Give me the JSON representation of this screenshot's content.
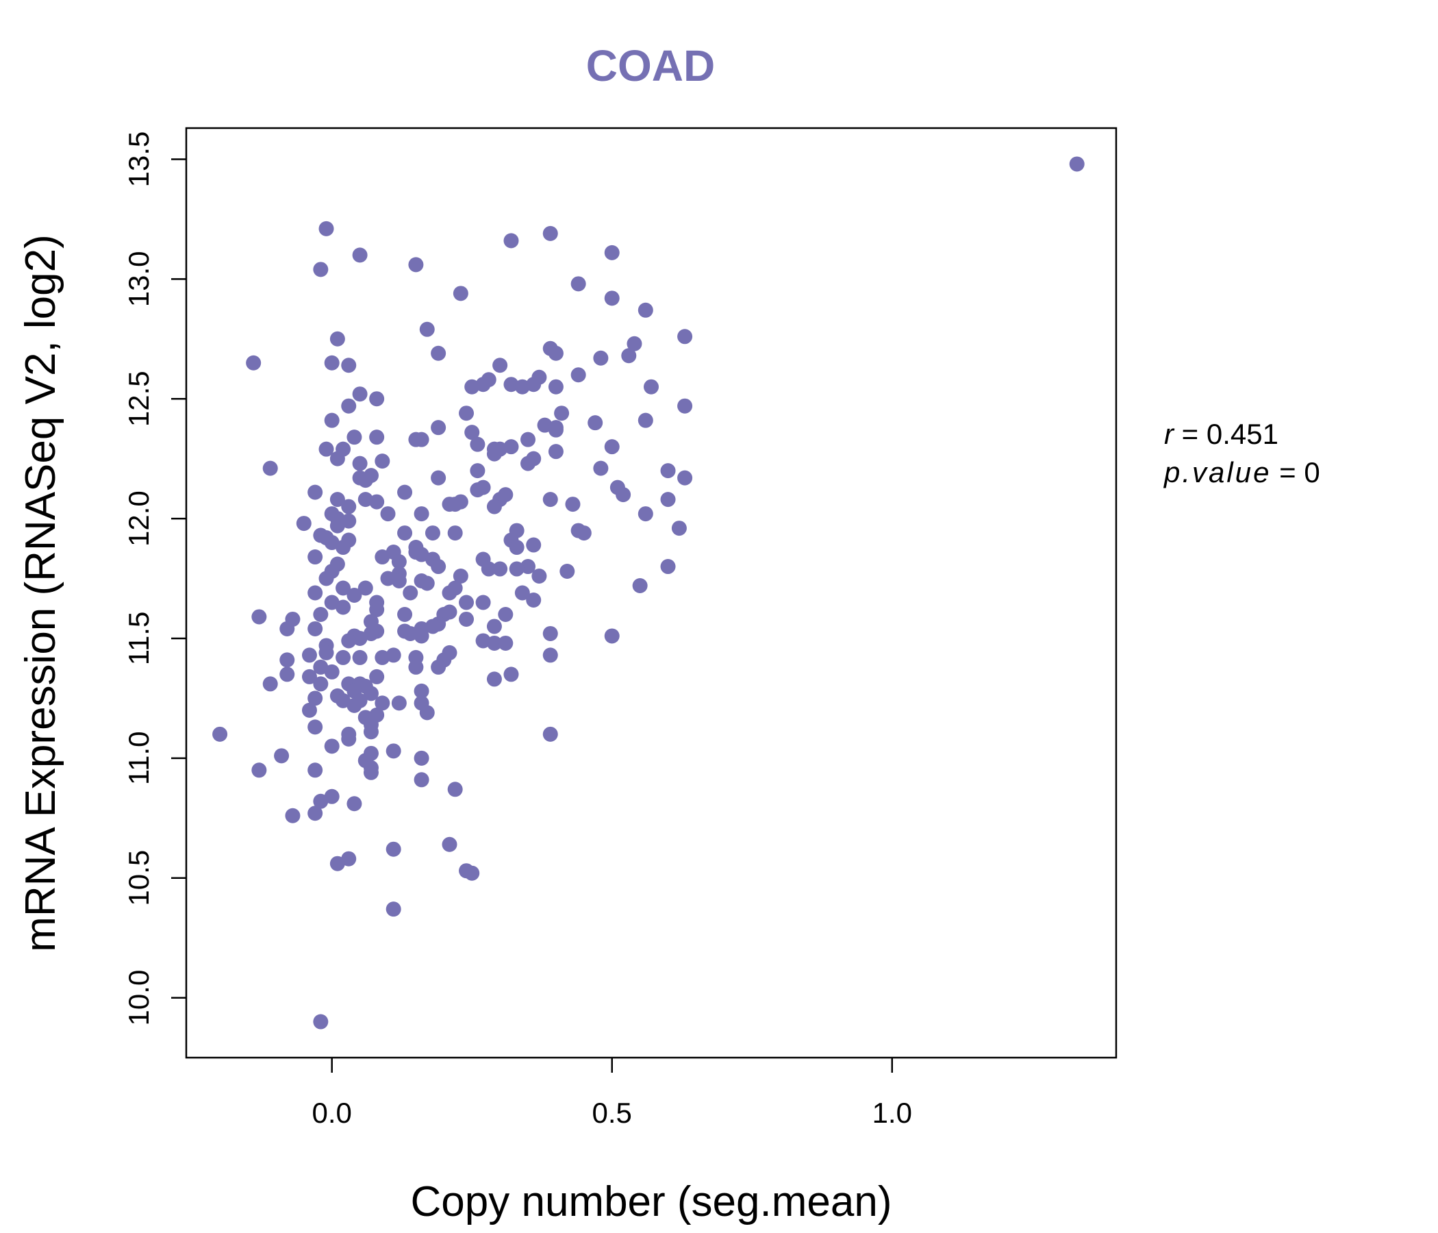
{
  "chart_data": {
    "type": "scatter",
    "title": "COAD",
    "xlabel": "Copy number (seg.mean)",
    "ylabel": "mRNA Expression (RNASeq V2, log2)",
    "xlim": [
      -0.26,
      1.4
    ],
    "ylim": [
      9.75,
      13.63
    ],
    "xticks": [
      0.0,
      0.5,
      1.0
    ],
    "xtick_labels": [
      "0.0",
      "0.5",
      "1.0"
    ],
    "yticks": [
      10.0,
      10.5,
      11.0,
      11.5,
      12.0,
      12.5,
      13.0,
      13.5
    ],
    "ytick_labels": [
      "10.0",
      "10.5",
      "11.0",
      "11.5",
      "12.0",
      "12.5",
      "13.0",
      "13.5"
    ],
    "grid": false,
    "annotation": {
      "r_label": "r",
      "r_value": "0.451",
      "p_label": "p.value",
      "p_value": "0"
    },
    "point_color": "#7570b3",
    "points": [
      [
        1.33,
        13.48
      ],
      [
        -0.01,
        13.21
      ],
      [
        0.39,
        13.19
      ],
      [
        0.32,
        13.16
      ],
      [
        0.5,
        13.11
      ],
      [
        0.05,
        13.1
      ],
      [
        0.15,
        13.06
      ],
      [
        -0.02,
        13.04
      ],
      [
        0.44,
        12.98
      ],
      [
        0.23,
        12.94
      ],
      [
        0.5,
        12.92
      ],
      [
        0.56,
        12.87
      ],
      [
        0.17,
        12.79
      ],
      [
        0.01,
        12.75
      ],
      [
        0.63,
        12.76
      ],
      [
        0.54,
        12.73
      ],
      [
        0.39,
        12.71
      ],
      [
        0.19,
        12.69
      ],
      [
        0.4,
        12.69
      ],
      [
        0.53,
        12.68
      ],
      [
        0.48,
        12.67
      ],
      [
        -0.14,
        12.65
      ],
      [
        0.0,
        12.65
      ],
      [
        0.03,
        12.64
      ],
      [
        0.3,
        12.64
      ],
      [
        0.44,
        12.6
      ],
      [
        0.37,
        12.59
      ],
      [
        0.28,
        12.58
      ],
      [
        0.32,
        12.56
      ],
      [
        0.25,
        12.55
      ],
      [
        0.34,
        12.55
      ],
      [
        0.36,
        12.56
      ],
      [
        0.27,
        12.56
      ],
      [
        0.4,
        12.55
      ],
      [
        0.57,
        12.55
      ],
      [
        0.05,
        12.52
      ],
      [
        0.08,
        12.5
      ],
      [
        0.03,
        12.47
      ],
      [
        0.63,
        12.47
      ],
      [
        0.41,
        12.44
      ],
      [
        0.24,
        12.44
      ],
      [
        0.0,
        12.41
      ],
      [
        0.56,
        12.41
      ],
      [
        0.47,
        12.4
      ],
      [
        0.38,
        12.39
      ],
      [
        0.19,
        12.38
      ],
      [
        0.4,
        12.38
      ],
      [
        0.4,
        12.37
      ],
      [
        0.25,
        12.36
      ],
      [
        0.08,
        12.34
      ],
      [
        0.04,
        12.34
      ],
      [
        0.16,
        12.33
      ],
      [
        0.15,
        12.33
      ],
      [
        0.35,
        12.33
      ],
      [
        0.26,
        12.31
      ],
      [
        0.32,
        12.3
      ],
      [
        0.5,
        12.3
      ],
      [
        0.29,
        12.29
      ],
      [
        -0.01,
        12.29
      ],
      [
        0.3,
        12.29
      ],
      [
        0.02,
        12.29
      ],
      [
        0.4,
        12.28
      ],
      [
        0.29,
        12.27
      ],
      [
        0.01,
        12.25
      ],
      [
        0.36,
        12.25
      ],
      [
        0.35,
        12.23
      ],
      [
        0.09,
        12.24
      ],
      [
        0.05,
        12.23
      ],
      [
        0.48,
        12.21
      ],
      [
        -0.11,
        12.21
      ],
      [
        0.26,
        12.2
      ],
      [
        0.6,
        12.2
      ],
      [
        0.07,
        12.18
      ],
      [
        0.05,
        12.17
      ],
      [
        0.19,
        12.17
      ],
      [
        0.63,
        12.17
      ],
      [
        0.06,
        12.16
      ],
      [
        0.51,
        12.13
      ],
      [
        0.27,
        12.13
      ],
      [
        0.26,
        12.12
      ],
      [
        -0.03,
        12.11
      ],
      [
        0.13,
        12.11
      ],
      [
        0.52,
        12.1
      ],
      [
        0.31,
        12.1
      ],
      [
        0.3,
        12.08
      ],
      [
        0.01,
        12.08
      ],
      [
        0.39,
        12.08
      ],
      [
        0.06,
        12.08
      ],
      [
        0.6,
        12.08
      ],
      [
        0.08,
        12.07
      ],
      [
        0.21,
        12.06
      ],
      [
        0.23,
        12.07
      ],
      [
        0.22,
        12.06
      ],
      [
        0.43,
        12.06
      ],
      [
        0.03,
        12.05
      ],
      [
        0.29,
        12.05
      ],
      [
        0.0,
        12.02
      ],
      [
        0.1,
        12.02
      ],
      [
        0.16,
        12.02
      ],
      [
        0.56,
        12.02
      ],
      [
        0.01,
        12.0
      ],
      [
        0.03,
        11.99
      ],
      [
        0.01,
        11.97
      ],
      [
        -0.05,
        11.98
      ],
      [
        0.62,
        11.96
      ],
      [
        0.33,
        11.95
      ],
      [
        0.44,
        11.95
      ],
      [
        0.45,
        11.94
      ],
      [
        0.13,
        11.94
      ],
      [
        0.22,
        11.94
      ],
      [
        0.18,
        11.94
      ],
      [
        -0.02,
        11.93
      ],
      [
        -0.01,
        11.92
      ],
      [
        0.03,
        11.91
      ],
      [
        0.32,
        11.91
      ],
      [
        0.0,
        11.9
      ],
      [
        0.36,
        11.89
      ],
      [
        0.33,
        11.88
      ],
      [
        0.02,
        11.88
      ],
      [
        0.15,
        11.88
      ],
      [
        0.15,
        11.86
      ],
      [
        0.11,
        11.86
      ],
      [
        0.16,
        11.85
      ],
      [
        0.09,
        11.84
      ],
      [
        -0.03,
        11.84
      ],
      [
        0.18,
        11.83
      ],
      [
        0.27,
        11.83
      ],
      [
        0.12,
        11.82
      ],
      [
        0.01,
        11.81
      ],
      [
        0.19,
        11.8
      ],
      [
        0.35,
        11.8
      ],
      [
        0.3,
        11.79
      ],
      [
        0.28,
        11.79
      ],
      [
        0.33,
        11.79
      ],
      [
        0.6,
        11.8
      ],
      [
        0.0,
        11.78
      ],
      [
        0.42,
        11.78
      ],
      [
        0.12,
        11.77
      ],
      [
        0.37,
        11.76
      ],
      [
        0.23,
        11.76
      ],
      [
        0.1,
        11.75
      ],
      [
        -0.01,
        11.75
      ],
      [
        0.12,
        11.74
      ],
      [
        0.16,
        11.74
      ],
      [
        0.17,
        11.73
      ],
      [
        0.55,
        11.72
      ],
      [
        0.06,
        11.71
      ],
      [
        0.02,
        11.71
      ],
      [
        0.22,
        11.71
      ],
      [
        0.21,
        11.69
      ],
      [
        -0.03,
        11.69
      ],
      [
        0.14,
        11.69
      ],
      [
        0.34,
        11.69
      ],
      [
        0.04,
        11.68
      ],
      [
        0.36,
        11.66
      ],
      [
        0.08,
        11.65
      ],
      [
        0.24,
        11.65
      ],
      [
        0.0,
        11.65
      ],
      [
        0.27,
        11.65
      ],
      [
        0.02,
        11.63
      ],
      [
        0.08,
        11.62
      ],
      [
        0.21,
        11.61
      ],
      [
        0.2,
        11.6
      ],
      [
        -0.02,
        11.6
      ],
      [
        0.31,
        11.6
      ],
      [
        0.13,
        11.6
      ],
      [
        -0.13,
        11.59
      ],
      [
        -0.07,
        11.58
      ],
      [
        0.24,
        11.58
      ],
      [
        0.07,
        11.57
      ],
      [
        0.19,
        11.56
      ],
      [
        0.29,
        11.55
      ],
      [
        0.18,
        11.55
      ],
      [
        0.16,
        11.54
      ],
      [
        0.08,
        11.53
      ],
      [
        -0.08,
        11.54
      ],
      [
        0.13,
        11.53
      ],
      [
        -0.03,
        11.54
      ],
      [
        0.14,
        11.52
      ],
      [
        0.07,
        11.52
      ],
      [
        0.16,
        11.51
      ],
      [
        0.04,
        11.51
      ],
      [
        0.5,
        11.51
      ],
      [
        0.39,
        11.52
      ],
      [
        0.05,
        11.5
      ],
      [
        0.03,
        11.49
      ],
      [
        0.27,
        11.49
      ],
      [
        0.29,
        11.48
      ],
      [
        0.31,
        11.48
      ],
      [
        -0.01,
        11.47
      ],
      [
        0.21,
        11.44
      ],
      [
        0.05,
        11.42
      ],
      [
        -0.01,
        11.44
      ],
      [
        0.11,
        11.43
      ],
      [
        0.09,
        11.42
      ],
      [
        -0.04,
        11.43
      ],
      [
        0.02,
        11.42
      ],
      [
        -0.08,
        11.41
      ],
      [
        0.2,
        11.41
      ],
      [
        0.15,
        11.42
      ],
      [
        0.39,
        11.43
      ],
      [
        0.15,
        11.38
      ],
      [
        0.19,
        11.38
      ],
      [
        -0.02,
        11.38
      ],
      [
        0.0,
        11.36
      ],
      [
        0.08,
        11.34
      ],
      [
        0.32,
        11.35
      ],
      [
        -0.04,
        11.34
      ],
      [
        -0.08,
        11.35
      ],
      [
        -0.02,
        11.31
      ],
      [
        0.03,
        11.31
      ],
      [
        0.29,
        11.33
      ],
      [
        0.05,
        11.31
      ],
      [
        -0.11,
        11.31
      ],
      [
        0.06,
        11.3
      ],
      [
        0.04,
        11.28
      ],
      [
        0.16,
        11.28
      ],
      [
        0.07,
        11.27
      ],
      [
        0.01,
        11.26
      ],
      [
        -0.03,
        11.25
      ],
      [
        0.05,
        11.24
      ],
      [
        0.02,
        11.24
      ],
      [
        0.09,
        11.23
      ],
      [
        0.12,
        11.23
      ],
      [
        0.16,
        11.23
      ],
      [
        0.04,
        11.22
      ],
      [
        -0.04,
        11.2
      ],
      [
        0.17,
        11.19
      ],
      [
        0.08,
        11.18
      ],
      [
        0.06,
        11.17
      ],
      [
        0.07,
        11.14
      ],
      [
        -0.03,
        11.13
      ],
      [
        0.07,
        11.11
      ],
      [
        0.03,
        11.1
      ],
      [
        0.39,
        11.1
      ],
      [
        0.03,
        11.08
      ],
      [
        -0.2,
        11.1
      ],
      [
        0.0,
        11.05
      ],
      [
        0.11,
        11.03
      ],
      [
        0.07,
        11.02
      ],
      [
        -0.09,
        11.01
      ],
      [
        0.16,
        11.0
      ],
      [
        0.06,
        10.99
      ],
      [
        0.07,
        10.96
      ],
      [
        -0.03,
        10.95
      ],
      [
        -0.13,
        10.95
      ],
      [
        0.07,
        10.94
      ],
      [
        0.16,
        10.91
      ],
      [
        0.22,
        10.87
      ],
      [
        0.0,
        10.84
      ],
      [
        -0.02,
        10.82
      ],
      [
        0.04,
        10.81
      ],
      [
        -0.03,
        10.77
      ],
      [
        -0.07,
        10.76
      ],
      [
        0.21,
        10.64
      ],
      [
        0.11,
        10.62
      ],
      [
        0.03,
        10.58
      ],
      [
        0.01,
        10.56
      ],
      [
        0.24,
        10.53
      ],
      [
        0.25,
        10.52
      ],
      [
        0.11,
        10.37
      ],
      [
        -0.02,
        9.9
      ]
    ]
  }
}
